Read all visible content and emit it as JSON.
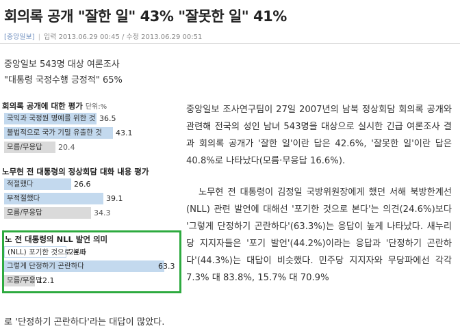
{
  "article": {
    "headline": "회의록 공개 \"잘한 일\" 43% \"잘못한 일\" 41%",
    "source": "[중앙일보]",
    "posted": "입력 2013.06.29 00:45 / 수정 2013.06.29 00:51",
    "subheads": [
      "중앙일보 543명 대상 여론조사",
      "\"대통령 국정수행 긍정적\" 65%"
    ],
    "body": [
      "중앙일보 조사연구팀이 27일 2007년의 남북 정상회담 회의록 공개와 관련해 전국의 성인 남녀 543명을 대상으로 실시한 긴급 여론조사 결과 회의록 공개가 '잘한 일'이란 답은 42.6%, '잘못한 일'이란 답은 40.8%로 나타났다(모름·무응답 16.6%).",
      "노무현 전 대통령이 김정일 국방위원장에게 했던 서해 북방한계선(NLL) 관련 발언에 대해선 '포기한 것으로 본다'는 의견(24.6%)보다 '그렇게 단정하기 곤란하다'(63.3%)는 응답이 높게 나타났다. 새누리당 지지자들은 '포기 발언'(44.2%)이라는 응답과 '단정하기 곤란하다'(44.3%)는 대답이 비슷했다. 민주당 지지자와 무당파에선 각각 7.3% 대 83.8%, 15.7% 대 70.9%"
    ],
    "body_last": "로 '단정하기 곤란하다'라는 대답이 많았다."
  },
  "chart_data": [
    {
      "type": "bar",
      "title": "회의록 공개에 대한 평가",
      "unit": "단위:%",
      "categories": [
        "국익과 국정원 명예를 위한 것",
        "불법적으로 국가 기밀 유출한 것",
        "모름/무응답"
      ],
      "values": [
        36.5,
        43.1,
        20.4
      ],
      "value_labels": [
        "36.5",
        "43.1",
        "20.4"
      ]
    },
    {
      "type": "bar",
      "title": "노무현 전 대통령의 정상회담 대화 내용 평가",
      "categories": [
        "적절했다",
        "부적절했다",
        "모름/무응답"
      ],
      "values": [
        26.6,
        39.1,
        34.3
      ],
      "value_labels": [
        "26.6",
        "39.1",
        "34.3"
      ]
    },
    {
      "type": "bar",
      "title": "노 전 대통령의 NLL 발언 의미",
      "categories": [
        "(NLL) 포기한 것으로 본다",
        "그렇게 단정하기 곤란하다",
        "모름/무응답"
      ],
      "values": [
        24.6,
        63.3,
        12.1
      ],
      "value_labels": [
        "24.6",
        "63.3",
        "12.1"
      ]
    }
  ],
  "colors": {
    "bar": "#c3d9ee",
    "bar_other": "#dadada",
    "highlight_box": "#2daa3f"
  }
}
